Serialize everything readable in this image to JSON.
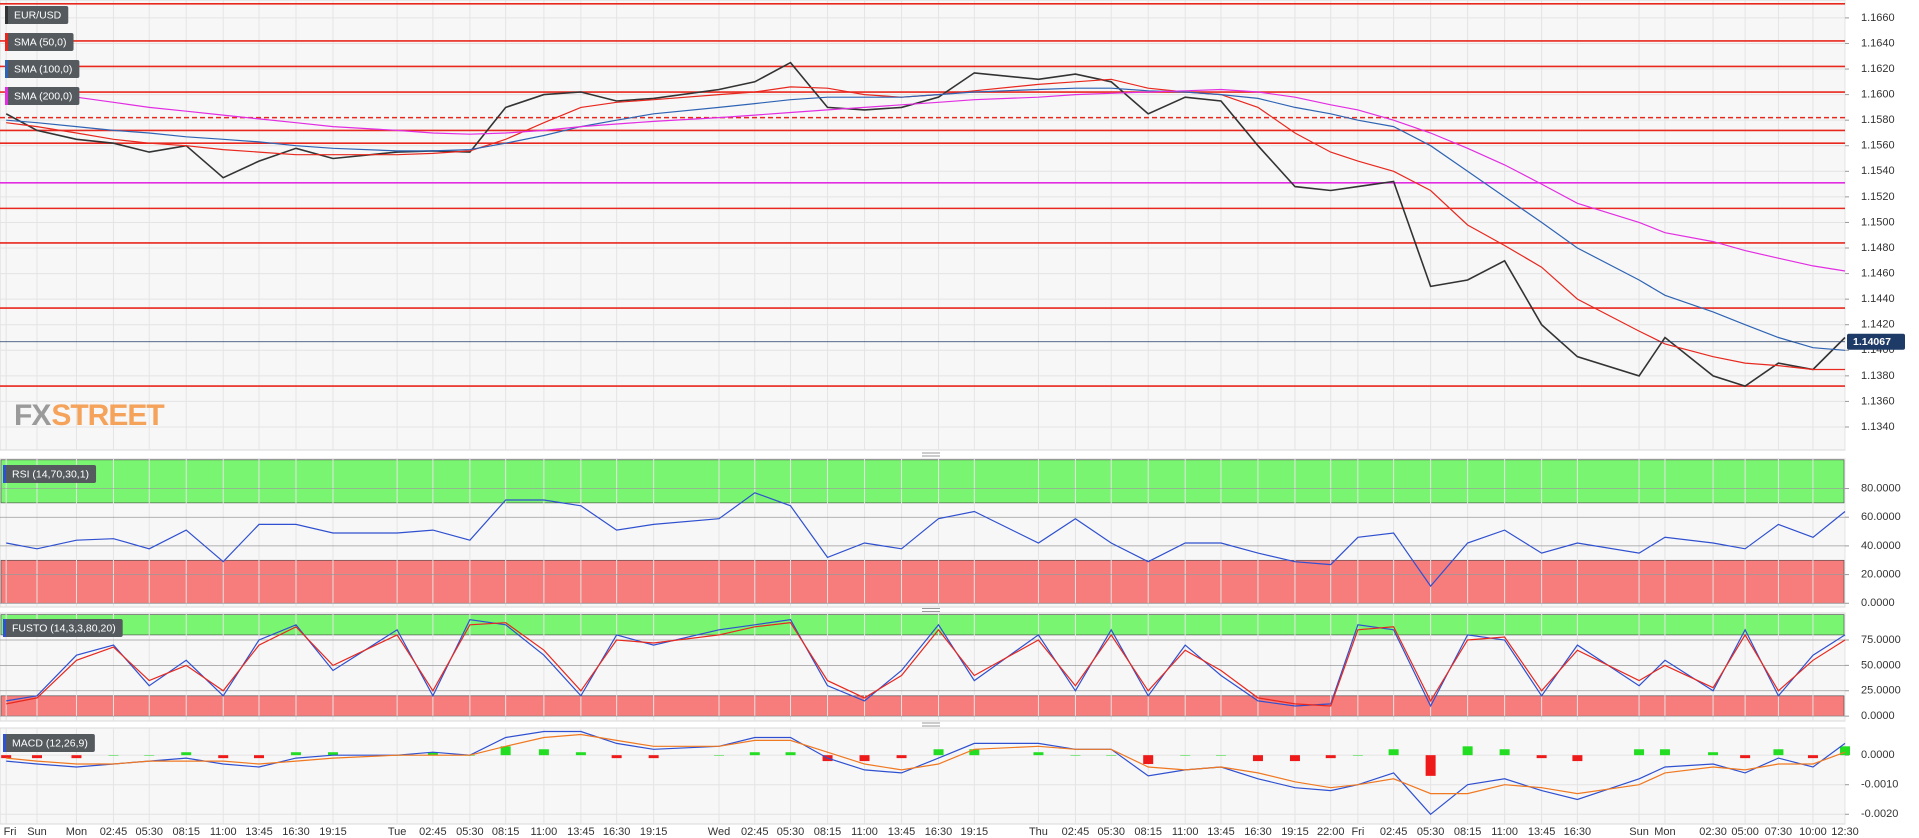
{
  "chart_data": [
    {
      "type": "line",
      "series": [
        {
          "name": "EUR/USD",
          "color": "#333333",
          "values": [
            1.1585,
            1.1572,
            1.1565,
            1.1562,
            1.1555,
            1.156,
            1.1535,
            1.1548,
            1.1558,
            1.155,
            1.1555,
            1.1556,
            1.1555,
            1.159,
            1.16,
            1.1602,
            1.1595,
            1.1597,
            1.1604,
            1.161,
            1.1625,
            1.159,
            1.1588,
            1.159,
            1.1598,
            1.1617,
            1.1612,
            1.1616,
            1.161,
            1.1585,
            1.1598,
            1.1595,
            1.156,
            1.1528,
            1.1525,
            1.1528,
            1.1532,
            1.145,
            1.1455,
            1.147,
            1.142,
            1.1395,
            1.138,
            1.141,
            1.138,
            1.1372,
            1.139,
            1.1385,
            1.141
          ]
        },
        {
          "name": "SMA (50,0)",
          "color": "#e8281e",
          "values": [
            1.1578,
            1.1575,
            1.157,
            1.1565,
            1.1562,
            1.156,
            1.1557,
            1.1555,
            1.1553,
            1.1553,
            1.1553,
            1.1554,
            1.1556,
            1.1565,
            1.1578,
            1.159,
            1.1594,
            1.1596,
            1.16,
            1.1602,
            1.1606,
            1.1605,
            1.16,
            1.1598,
            1.16,
            1.1603,
            1.1608,
            1.161,
            1.1612,
            1.1605,
            1.1602,
            1.16,
            1.159,
            1.157,
            1.1555,
            1.1548,
            1.154,
            1.1525,
            1.1498,
            1.1482,
            1.1465,
            1.144,
            1.1415,
            1.1405,
            1.1395,
            1.139,
            1.1388,
            1.1385,
            1.1385
          ]
        },
        {
          "name": "SMA (100,0)",
          "color": "#2f64b4",
          "values": [
            1.158,
            1.1578,
            1.1575,
            1.1572,
            1.157,
            1.1567,
            1.1565,
            1.1563,
            1.156,
            1.1558,
            1.1556,
            1.1556,
            1.1557,
            1.1562,
            1.1568,
            1.1575,
            1.158,
            1.1585,
            1.159,
            1.1593,
            1.1596,
            1.1598,
            1.1598,
            1.1598,
            1.16,
            1.1602,
            1.1604,
            1.1605,
            1.1605,
            1.1603,
            1.1602,
            1.16,
            1.1597,
            1.159,
            1.1585,
            1.158,
            1.1575,
            1.156,
            1.154,
            1.152,
            1.15,
            1.148,
            1.1455,
            1.1443,
            1.143,
            1.142,
            1.141,
            1.1402,
            1.14
          ]
        },
        {
          "name": "SMA (200,0)",
          "color": "#e22ee2",
          "values": [
            1.1605,
            1.1602,
            1.1598,
            1.1594,
            1.159,
            1.1587,
            1.1584,
            1.1581,
            1.1578,
            1.1575,
            1.1572,
            1.157,
            1.1569,
            1.157,
            1.1572,
            1.1575,
            1.1577,
            1.1579,
            1.1582,
            1.1584,
            1.1586,
            1.1588,
            1.159,
            1.1592,
            1.1594,
            1.1596,
            1.1598,
            1.16,
            1.1601,
            1.1602,
            1.1603,
            1.1604,
            1.1602,
            1.1598,
            1.1592,
            1.1588,
            1.158,
            1.157,
            1.1558,
            1.1545,
            1.153,
            1.1515,
            1.15,
            1.1492,
            1.1485,
            1.1478,
            1.1472,
            1.1466,
            1.1462
          ]
        }
      ],
      "ylim": [
        1.1322,
        1.1674
      ],
      "yticks": [
        {
          "value": 1.134,
          "label": "1.1340"
        },
        {
          "value": 1.136,
          "label": "1.1360"
        },
        {
          "value": 1.138,
          "label": "1.1380"
        },
        {
          "value": 1.14,
          "label": "1.1400"
        },
        {
          "value": 1.142,
          "label": "1.1420"
        },
        {
          "value": 1.144,
          "label": "1.1440"
        },
        {
          "value": 1.146,
          "label": "1.1460"
        },
        {
          "value": 1.148,
          "label": "1.1480"
        },
        {
          "value": 1.15,
          "label": "1.1500"
        },
        {
          "value": 1.152,
          "label": "1.1520"
        },
        {
          "value": 1.154,
          "label": "1.1540"
        },
        {
          "value": 1.156,
          "label": "1.1560"
        },
        {
          "value": 1.158,
          "label": "1.1580"
        },
        {
          "value": 1.16,
          "label": "1.1600"
        },
        {
          "value": 1.162,
          "label": "1.1620"
        },
        {
          "value": 1.164,
          "label": "1.1640"
        },
        {
          "value": 1.166,
          "label": "1.1660"
        }
      ],
      "grid": true,
      "levels": [
        {
          "value": 1.1671,
          "color": "#e8281e"
        },
        {
          "value": 1.1642,
          "color": "#e8281e"
        },
        {
          "value": 1.1622,
          "color": "#e8281e"
        },
        {
          "value": 1.1602,
          "color": "#e8281e"
        },
        {
          "value": 1.1582,
          "color": "#e8281e",
          "style": "dashed"
        },
        {
          "value": 1.1572,
          "color": "#e8281e"
        },
        {
          "value": 1.1562,
          "color": "#e8281e"
        },
        {
          "value": 1.1531,
          "color": "#e22ee2"
        },
        {
          "value": 1.1511,
          "color": "#e8281e"
        },
        {
          "value": 1.1484,
          "color": "#e8281e"
        },
        {
          "value": 1.1433,
          "color": "#e8281e"
        },
        {
          "value": 1.1372,
          "color": "#e8281e"
        }
      ],
      "last_price": 1.14067,
      "last_price_color": "#1e3a66",
      "watermark": [
        "FX",
        "STREET"
      ]
    },
    {
      "type": "line",
      "title": "RSI (14,70,30,1)",
      "series": [
        {
          "color": "#2f50d0",
          "values": [
            42,
            38,
            44,
            45,
            38,
            51,
            29,
            55,
            55,
            49,
            49,
            51,
            44,
            72,
            72,
            68,
            51,
            55,
            59,
            77,
            68,
            32,
            42,
            38,
            59,
            64,
            42,
            59,
            42,
            29,
            42,
            42,
            35,
            29,
            27,
            46,
            49,
            12,
            42,
            51,
            35,
            42,
            35,
            46,
            42,
            38,
            55,
            46,
            64
          ]
        }
      ],
      "zones": [
        {
          "from": 70,
          "to": 100,
          "color": "#7af572"
        },
        {
          "from": 0,
          "to": 30,
          "color": "#f77c7c"
        }
      ],
      "ylim": [
        -2.6,
        100.6
      ],
      "yticks": [
        {
          "value": 0,
          "label": "0.0000"
        },
        {
          "value": 20,
          "label": "20.0000"
        },
        {
          "value": 40,
          "label": "40.0000"
        },
        {
          "value": 60,
          "label": "60.0000"
        },
        {
          "value": 80,
          "label": "80.0000"
        }
      ],
      "grid": true
    },
    {
      "type": "line",
      "title": "FUSTO (14,3,3,80,20)",
      "series": [
        {
          "color": "#2f50d0",
          "values": [
            15,
            20,
            60,
            70,
            30,
            55,
            20,
            75,
            90,
            45,
            85,
            20,
            95,
            90,
            60,
            20,
            80,
            70,
            85,
            90,
            95,
            30,
            15,
            45,
            90,
            35,
            80,
            25,
            85,
            20,
            70,
            40,
            15,
            10,
            12,
            90,
            85,
            10,
            80,
            75,
            20,
            70,
            30,
            55,
            25,
            85,
            20,
            60,
            80
          ]
        },
        {
          "color": "#e8281e",
          "values": [
            12,
            18,
            55,
            68,
            35,
            50,
            25,
            70,
            88,
            50,
            80,
            25,
            90,
            92,
            65,
            25,
            75,
            72,
            80,
            88,
            92,
            35,
            18,
            40,
            85,
            40,
            75,
            30,
            80,
            25,
            65,
            45,
            18,
            12,
            10,
            85,
            88,
            15,
            75,
            78,
            25,
            65,
            35,
            50,
            28,
            80,
            25,
            55,
            75
          ]
        }
      ],
      "zones": [
        {
          "from": 80,
          "to": 100,
          "color": "#7af572"
        },
        {
          "from": 0,
          "to": 20,
          "color": "#f77c7c"
        }
      ],
      "ylim": [
        -4.8,
        101.6
      ],
      "yticks": [
        {
          "value": 0,
          "label": "0.0000"
        },
        {
          "value": 25,
          "label": "25.0000"
        },
        {
          "value": 50,
          "label": "50.0000"
        },
        {
          "value": 75,
          "label": "75.0000"
        }
      ],
      "grid": true
    },
    {
      "type": "line",
      "title": "MACD (12,26,9)",
      "categories": [
        "Fri",
        "Sun",
        "Mon",
        "02:45",
        "05:30",
        "08:15",
        "11:00",
        "13:45",
        "16:30",
        "19:15",
        "Tue",
        "02:45",
        "05:30",
        "08:15",
        "11:00",
        "13:45",
        "16:30",
        "19:15",
        "Wed",
        "02:45",
        "05:30",
        "08:15",
        "11:00",
        "13:45",
        "16:30",
        "19:15",
        "Thu",
        "02:45",
        "05:30",
        "08:15",
        "11:00",
        "13:45",
        "16:30",
        "19:15",
        "22:00",
        "Fri",
        "02:45",
        "05:30",
        "08:15",
        "11:00",
        "13:45",
        "16:30",
        "Sun",
        "Mon",
        "02:30",
        "05:00",
        "07:30",
        "10:00",
        "12:30"
      ],
      "histogram": {
        "positive_color": "#22dd22",
        "negative_color": "#ee1a1a",
        "values": [
          -0.0001,
          -0.0001,
          -0.0001,
          0.0,
          0.0,
          0.0001,
          -0.0001,
          -0.0001,
          0.0001,
          0.0001,
          0.0,
          0.0001,
          0.0,
          0.0003,
          0.0002,
          0.0001,
          -0.0001,
          -0.0001,
          0.0,
          0.0001,
          0.0001,
          -0.0002,
          -0.0002,
          -0.0001,
          0.0002,
          0.0002,
          0.0001,
          0.0,
          0.0,
          -0.0003,
          0.0,
          0.0,
          -0.0002,
          -0.0002,
          -0.0001,
          0.0,
          0.0002,
          -0.0007,
          0.0003,
          0.0002,
          -0.0001,
          -0.0002,
          0.0002,
          0.0002,
          0.0001,
          -0.0001,
          0.0002,
          -0.0001,
          0.0003
        ]
      },
      "series": [
        {
          "color": "#2f50d0",
          "values": [
            -0.0002,
            -0.0003,
            -0.0004,
            -0.0003,
            -0.0002,
            -0.0001,
            -0.0003,
            -0.0004,
            -0.0001,
            0.0,
            0.0,
            0.0001,
            0.0,
            0.0006,
            0.0008,
            0.0008,
            0.0004,
            0.0002,
            0.0003,
            0.0006,
            0.0006,
            -0.0001,
            -0.0005,
            -0.0006,
            -0.0001,
            0.0004,
            0.0004,
            0.0002,
            0.0002,
            -0.0007,
            -0.0005,
            -0.0004,
            -0.0008,
            -0.0011,
            -0.0012,
            -0.001,
            -0.0006,
            -0.002,
            -0.001,
            -0.0008,
            -0.0012,
            -0.0015,
            -0.0008,
            -0.0004,
            -0.0003,
            -0.0006,
            -0.0001,
            -0.0004,
            0.0004
          ]
        },
        {
          "color": "#f07820",
          "values": [
            -0.0001,
            -0.0002,
            -0.0003,
            -0.0003,
            -0.0002,
            -0.0002,
            -0.0002,
            -0.0003,
            -0.0002,
            -0.0001,
            0.0,
            0.0,
            0.0,
            0.0003,
            0.0006,
            0.0007,
            0.0005,
            0.0003,
            0.0003,
            0.0005,
            0.0005,
            0.0001,
            -0.0003,
            -0.0005,
            -0.0003,
            0.0002,
            0.0003,
            0.0002,
            0.0002,
            -0.0004,
            -0.0005,
            -0.0004,
            -0.0006,
            -0.0009,
            -0.0011,
            -0.001,
            -0.0008,
            -0.0013,
            -0.0013,
            -0.001,
            -0.0011,
            -0.0013,
            -0.001,
            -0.0006,
            -0.0004,
            -0.0005,
            -0.0003,
            -0.0003,
            0.0001
          ]
        }
      ],
      "ylim": [
        -0.00233,
        0.00092
      ],
      "yticks": [
        {
          "value": 0,
          "label": "0.0000"
        },
        {
          "value": -0.001,
          "label": "-0.0010"
        },
        {
          "value": -0.002,
          "label": "-0.0020"
        }
      ],
      "grid": true
    }
  ]
}
